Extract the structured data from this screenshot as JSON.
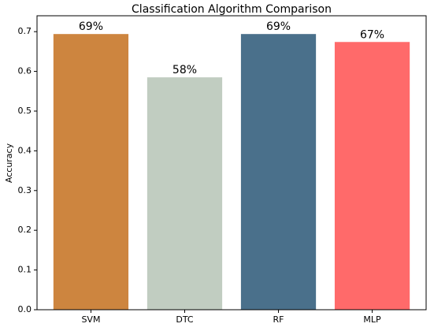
{
  "chart_data": {
    "type": "bar",
    "title": "Classification Algorithm Comparison",
    "y_label": "Accuracy",
    "categories": [
      "SVM",
      "DTC",
      "RF",
      "MLP"
    ],
    "values": [
      0.694,
      0.585,
      0.694,
      0.674
    ],
    "value_labels": [
      "69%",
      "58%",
      "69%",
      "67%"
    ],
    "colors": [
      "#cd853f",
      "#c1cdc1",
      "#4a708b",
      "#ff6a6a"
    ],
    "ylim": [
      0,
      0.74
    ],
    "yticks": [
      {
        "value": 0,
        "label": "0.0"
      },
      0.1,
      0.2,
      0.3,
      0.4,
      0.5,
      0.6,
      0.7
    ],
    "grid": false
  }
}
